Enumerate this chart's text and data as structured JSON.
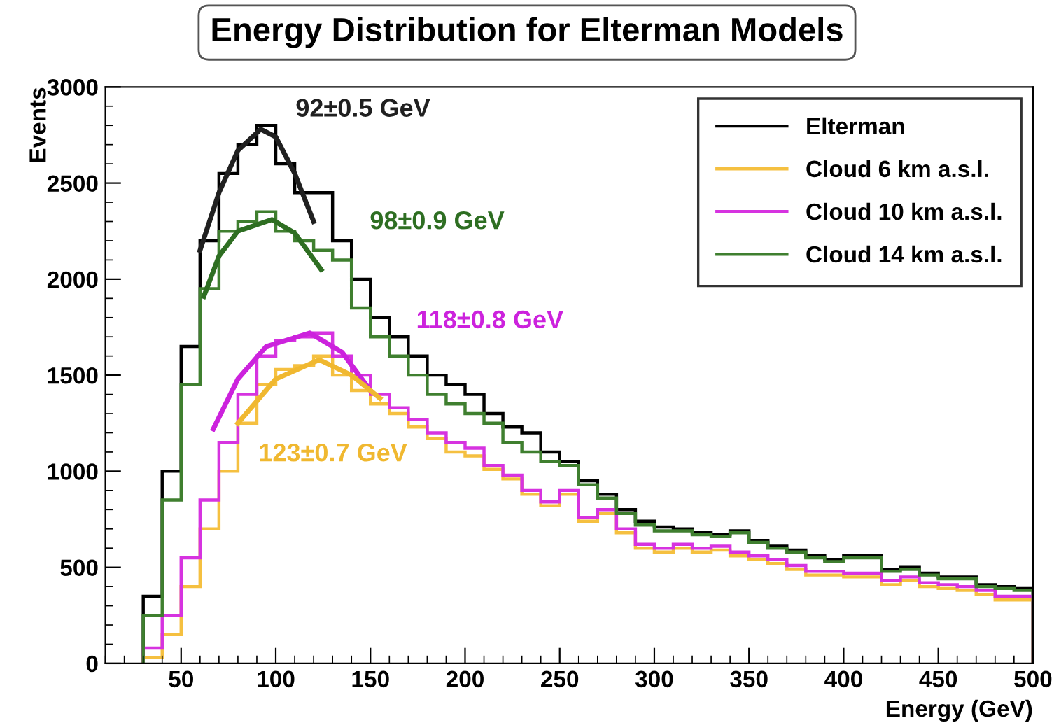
{
  "chart_data": {
    "type": "histogram",
    "title": "Energy Distribution for Elterman Models",
    "xlabel": "Energy (GeV)",
    "ylabel": "Events",
    "bins": [
      30,
      40,
      50,
      60,
      70,
      80,
      90,
      100,
      110,
      120,
      130,
      140,
      150,
      160,
      170,
      180,
      190,
      200,
      210,
      220,
      230,
      240,
      250,
      260,
      270,
      280,
      290,
      300,
      310,
      320,
      330,
      340,
      350,
      360,
      370,
      380,
      390,
      400,
      410,
      420,
      430,
      440,
      450,
      460,
      470,
      480,
      490,
      500
    ],
    "series": [
      {
        "name": "Elterman",
        "color": "#000000",
        "values": [
          350,
          1000,
          1650,
          2200,
          2550,
          2700,
          2800,
          2600,
          2450,
          2450,
          2200,
          2000,
          1800,
          1700,
          1600,
          1500,
          1450,
          1400,
          1300,
          1230,
          1200,
          1100,
          1050,
          950,
          880,
          800,
          740,
          710,
          700,
          680,
          670,
          690,
          640,
          610,
          590,
          560,
          540,
          560,
          560,
          490,
          500,
          470,
          450,
          450,
          410,
          400,
          390
        ]
      },
      {
        "name": "Cloud 6 km a.s.l.",
        "color": "#f5c040",
        "values": [
          30,
          150,
          400,
          700,
          1000,
          1250,
          1450,
          1530,
          1550,
          1600,
          1500,
          1420,
          1350,
          1300,
          1230,
          1170,
          1100,
          1080,
          1010,
          960,
          880,
          820,
          880,
          740,
          780,
          680,
          600,
          580,
          600,
          580,
          590,
          560,
          540,
          520,
          490,
          460,
          460,
          450,
          450,
          410,
          430,
          400,
          390,
          380,
          360,
          330,
          330
        ]
      },
      {
        "name": "Cloud 10 km a.s.l.",
        "color": "#d633e0",
        "values": [
          80,
          250,
          550,
          850,
          1150,
          1400,
          1600,
          1680,
          1700,
          1720,
          1600,
          1500,
          1400,
          1330,
          1270,
          1200,
          1150,
          1120,
          1030,
          980,
          900,
          840,
          900,
          760,
          800,
          700,
          620,
          600,
          620,
          600,
          610,
          580,
          560,
          540,
          510,
          480,
          480,
          470,
          470,
          430,
          450,
          420,
          410,
          400,
          380,
          350,
          350
        ]
      },
      {
        "name": "Cloud 14 km a.s.l.",
        "color": "#3f7f2f",
        "values": [
          250,
          850,
          1450,
          1950,
          2250,
          2300,
          2350,
          2250,
          2200,
          2150,
          2100,
          1850,
          1700,
          1600,
          1500,
          1400,
          1350,
          1300,
          1250,
          1150,
          1100,
          1050,
          1030,
          930,
          860,
          780,
          720,
          690,
          690,
          670,
          660,
          680,
          630,
          600,
          580,
          550,
          530,
          550,
          550,
          480,
          490,
          460,
          440,
          440,
          400,
          390,
          380
        ]
      },
      {
        "type": "line",
        "color": "#202020",
        "x": [
          60,
          70,
          80,
          92,
          100,
          110,
          120
        ],
        "values": [
          2150,
          2450,
          2670,
          2780,
          2740,
          2550,
          2300
        ]
      },
      {
        "type": "line",
        "color": "#2e6e22",
        "x": [
          62,
          70,
          80,
          98,
          110,
          124
        ],
        "values": [
          1910,
          2120,
          2250,
          2310,
          2240,
          2050
        ]
      },
      {
        "type": "line",
        "color": "#cc22dd",
        "x": [
          67,
          80,
          95,
          118,
          135,
          150
        ],
        "values": [
          1220,
          1480,
          1650,
          1720,
          1620,
          1420
        ]
      },
      {
        "type": "line",
        "color": "#f0b830",
        "x": [
          80,
          100,
          123,
          140,
          155
        ],
        "values": [
          1250,
          1480,
          1580,
          1500,
          1380
        ]
      }
    ],
    "annotations": [
      "92±0.5 GeV",
      "98±0.9 GeV",
      "118±0.8 GeV",
      "123±0.7 GeV"
    ],
    "xlim": [
      10,
      500
    ],
    "ylim": [
      0,
      3000
    ],
    "xticks": [
      50,
      100,
      150,
      200,
      250,
      300,
      350,
      400,
      450,
      500
    ],
    "yticks": [
      0,
      500,
      1000,
      1500,
      2000,
      2500,
      3000
    ],
    "legend": "top right",
    "grid": false
  }
}
